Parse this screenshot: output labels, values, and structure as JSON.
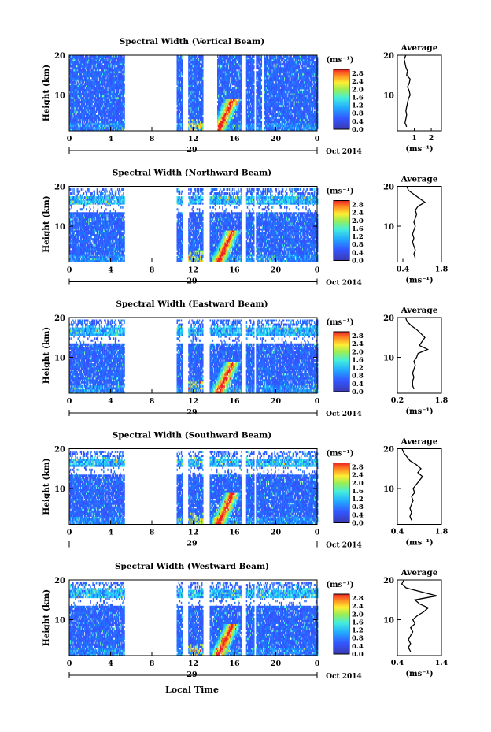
{
  "figure": {
    "date_label": "Oct 2014",
    "day_label": "29",
    "xlabel_bottom": "Local Time",
    "ylabel": "Height (km)",
    "profile_title": "Average",
    "profile_xlabel": "(ms⁻¹)",
    "colorbar_unit": "(ms⁻¹)"
  },
  "chart_data": [
    {
      "type": "heatmap",
      "title": "Spectral Width (Vertical Beam)",
      "x_ticks": [
        "0",
        "4",
        "8",
        "12",
        "16",
        "20",
        "0"
      ],
      "xlim": [
        0,
        24
      ],
      "y_ticks": [
        "20",
        "10"
      ],
      "ylim": [
        1,
        20
      ],
      "colorbar_ticks": [
        "2.8",
        "2.4",
        "2.0",
        "1.6",
        "1.2",
        "0.8",
        "0.4",
        "0.0"
      ],
      "color_range": [
        0.0,
        3.0
      ],
      "data_gaps_hours": [
        [
          5.4,
          10.4
        ],
        [
          11.0,
          11.5
        ],
        [
          13.0,
          14.3
        ],
        [
          16.7,
          17.1
        ],
        [
          17.9,
          18.1
        ],
        [
          18.6,
          18.9
        ]
      ],
      "profile": {
        "xlim": [
          0.0,
          2.6
        ],
        "xticks": [
          "1",
          "2"
        ],
        "xtick_values": [
          1,
          2
        ],
        "ylim": [
          1,
          20
        ],
        "yticks": [
          "20",
          "10"
        ],
        "heights": [
          2,
          3,
          4,
          5,
          6,
          7,
          8,
          9,
          10,
          11,
          12,
          13,
          14,
          15,
          16,
          17,
          18,
          19,
          20
        ],
        "values": [
          0.55,
          0.45,
          0.5,
          0.55,
          0.5,
          0.55,
          0.6,
          0.65,
          0.75,
          0.7,
          0.6,
          0.7,
          0.75,
          0.55,
          0.6,
          0.5,
          0.45,
          0.4,
          0.5
        ]
      }
    },
    {
      "type": "heatmap",
      "title": "Spectral Width (Northward Beam)",
      "x_ticks": [
        "0",
        "4",
        "8",
        "12",
        "16",
        "20",
        "0"
      ],
      "xlim": [
        0,
        24
      ],
      "y_ticks": [
        "20",
        "10"
      ],
      "ylim": [
        1,
        20
      ],
      "colorbar_ticks": [
        "2.8",
        "2.4",
        "2.0",
        "1.6",
        "1.2",
        "0.8",
        "0.4",
        "0.0"
      ],
      "color_range": [
        0.0,
        3.0
      ],
      "data_gaps_hours": [
        [
          5.4,
          10.4
        ],
        [
          11.0,
          11.5
        ],
        [
          13.0,
          13.6
        ],
        [
          16.7,
          17.1
        ],
        [
          17.9,
          18.1
        ]
      ],
      "profile": {
        "xlim": [
          0.2,
          1.8
        ],
        "xticks": [
          "0.4",
          "1.8"
        ],
        "xtick_values": [
          0.4,
          1.8
        ],
        "ylim": [
          1,
          20
        ],
        "yticks": [
          "20",
          "10"
        ],
        "heights": [
          2,
          3,
          4,
          5,
          6,
          7,
          8,
          9,
          10,
          11,
          12,
          13,
          14,
          15,
          16,
          17,
          18,
          19,
          20
        ],
        "values": [
          0.85,
          0.8,
          0.85,
          0.8,
          0.75,
          0.8,
          0.75,
          0.8,
          0.85,
          0.8,
          0.85,
          0.9,
          0.85,
          0.95,
          1.2,
          1.0,
          0.8,
          0.6,
          0.55
        ]
      }
    },
    {
      "type": "heatmap",
      "title": "Spectral Width (Eastward Beam)",
      "x_ticks": [
        "0",
        "4",
        "8",
        "12",
        "16",
        "20",
        "0"
      ],
      "xlim": [
        0,
        24
      ],
      "y_ticks": [
        "20",
        "10"
      ],
      "ylim": [
        1,
        20
      ],
      "colorbar_ticks": [
        "2.8",
        "2.4",
        "2.0",
        "1.6",
        "1.2",
        "0.8",
        "0.4",
        "0.0"
      ],
      "color_range": [
        0.0,
        3.0
      ],
      "data_gaps_hours": [
        [
          5.4,
          10.4
        ],
        [
          11.0,
          11.5
        ],
        [
          13.0,
          13.6
        ],
        [
          16.7,
          17.1
        ],
        [
          17.9,
          18.1
        ]
      ],
      "profile": {
        "xlim": [
          0.2,
          1.8
        ],
        "xticks": [
          "0.2",
          "1.8"
        ],
        "xtick_values": [
          0.2,
          1.8
        ],
        "ylim": [
          1,
          20
        ],
        "yticks": [
          "20",
          "10"
        ],
        "heights": [
          2,
          3,
          4,
          5,
          6,
          7,
          8,
          9,
          10,
          11,
          12,
          13,
          14,
          15,
          16,
          17,
          18,
          19,
          20
        ],
        "values": [
          0.8,
          0.75,
          0.75,
          0.8,
          0.75,
          0.8,
          0.85,
          0.8,
          0.9,
          0.95,
          1.3,
          1.0,
          1.1,
          1.2,
          1.05,
          0.9,
          0.7,
          0.55,
          0.5
        ]
      }
    },
    {
      "type": "heatmap",
      "title": "Spectral Width (Southward Beam)",
      "x_ticks": [
        "0",
        "4",
        "8",
        "12",
        "16",
        "20",
        "0"
      ],
      "xlim": [
        0,
        24
      ],
      "y_ticks": [
        "20",
        "10"
      ],
      "ylim": [
        1,
        20
      ],
      "colorbar_ticks": [
        "2.8",
        "2.4",
        "2.0",
        "1.6",
        "1.2",
        "0.8",
        "0.4",
        "0.0"
      ],
      "color_range": [
        0.0,
        3.0
      ],
      "data_gaps_hours": [
        [
          5.4,
          10.4
        ],
        [
          11.0,
          11.5
        ],
        [
          13.0,
          13.6
        ],
        [
          16.7,
          17.1
        ],
        [
          17.9,
          18.1
        ]
      ],
      "profile": {
        "xlim": [
          0.4,
          1.8
        ],
        "xticks": [
          "0.4",
          "1.8"
        ],
        "xtick_values": [
          0.4,
          1.8
        ],
        "ylim": [
          1,
          20
        ],
        "yticks": [
          "20",
          "10"
        ],
        "heights": [
          2,
          3,
          4,
          5,
          6,
          7,
          8,
          9,
          10,
          11,
          12,
          13,
          14,
          15,
          16,
          17,
          18,
          19,
          20
        ],
        "values": [
          0.85,
          0.8,
          0.85,
          0.8,
          0.85,
          0.9,
          0.85,
          0.95,
          0.9,
          1.0,
          1.1,
          1.2,
          1.05,
          1.15,
          1.0,
          0.8,
          0.7,
          0.6,
          0.55
        ]
      }
    },
    {
      "type": "heatmap",
      "title": "Spectral Width (Westward Beam)",
      "x_ticks": [
        "0",
        "4",
        "8",
        "12",
        "16",
        "20",
        "0"
      ],
      "xlim": [
        0,
        24
      ],
      "y_ticks": [
        "20",
        "10"
      ],
      "ylim": [
        1,
        20
      ],
      "colorbar_ticks": [
        "2.8",
        "2.4",
        "2.0",
        "1.6",
        "1.2",
        "0.8",
        "0.4",
        "0.0"
      ],
      "color_range": [
        0.0,
        3.0
      ],
      "data_gaps_hours": [
        [
          5.4,
          10.4
        ],
        [
          11.0,
          11.5
        ],
        [
          13.0,
          13.6
        ],
        [
          16.7,
          17.1
        ],
        [
          17.9,
          18.1
        ]
      ],
      "profile": {
        "xlim": [
          0.4,
          1.4
        ],
        "xticks": [
          "0.4",
          "1.4"
        ],
        "xtick_values": [
          0.4,
          1.4
        ],
        "ylim": [
          1,
          20
        ],
        "yticks": [
          "20",
          "10"
        ],
        "heights": [
          2,
          3,
          4,
          5,
          6,
          7,
          8,
          9,
          10,
          11,
          12,
          13,
          14,
          15,
          16,
          17,
          18,
          19,
          20
        ],
        "values": [
          0.7,
          0.65,
          0.7,
          0.65,
          0.7,
          0.75,
          0.7,
          0.8,
          0.75,
          0.85,
          1.0,
          1.1,
          0.9,
          0.8,
          1.3,
          0.95,
          0.6,
          0.5,
          0.55
        ]
      }
    }
  ]
}
